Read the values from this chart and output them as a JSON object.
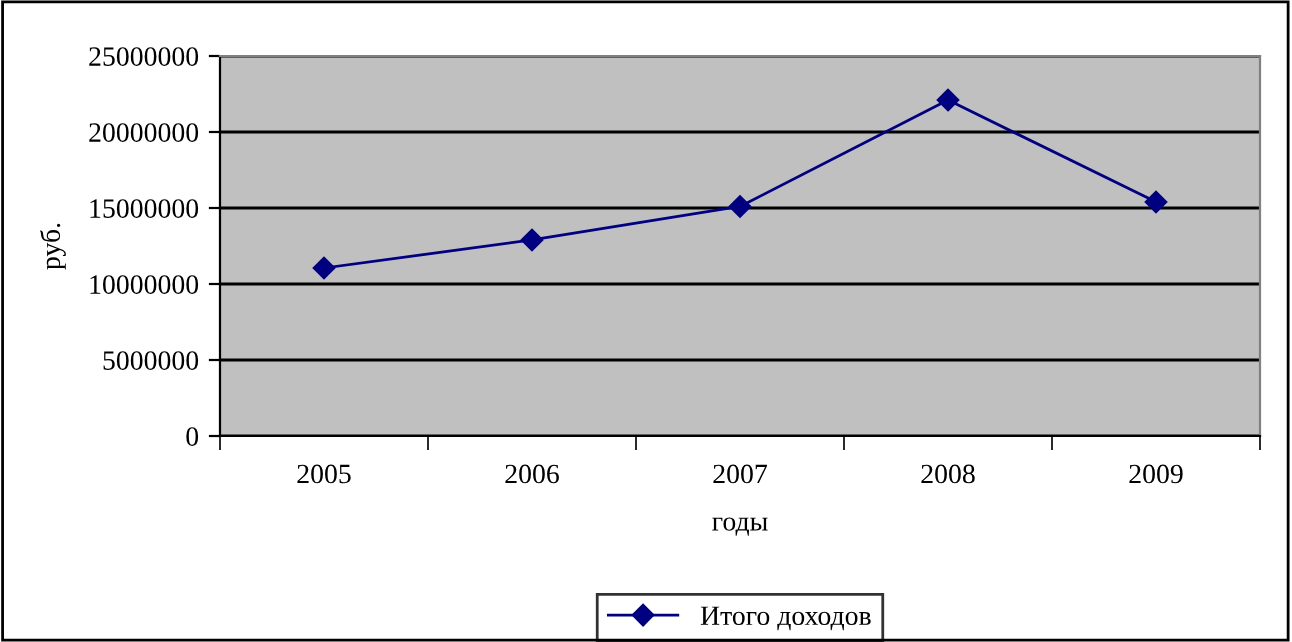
{
  "chart_data": {
    "type": "line",
    "xlabel": "годы",
    "ylabel": "руб.",
    "categories": [
      "2005",
      "2006",
      "2007",
      "2008",
      "2009"
    ],
    "series": [
      {
        "name": "Итого доходов",
        "color": "#000080",
        "values": [
          11050000,
          12900000,
          15100000,
          22100000,
          15400000
        ]
      }
    ],
    "ylim": [
      0,
      25000000
    ],
    "yticks": [
      0,
      5000000,
      10000000,
      15000000,
      20000000,
      25000000
    ],
    "grid": "y",
    "legend": "bottom",
    "marker": "diamond",
    "line_style": "solid"
  }
}
